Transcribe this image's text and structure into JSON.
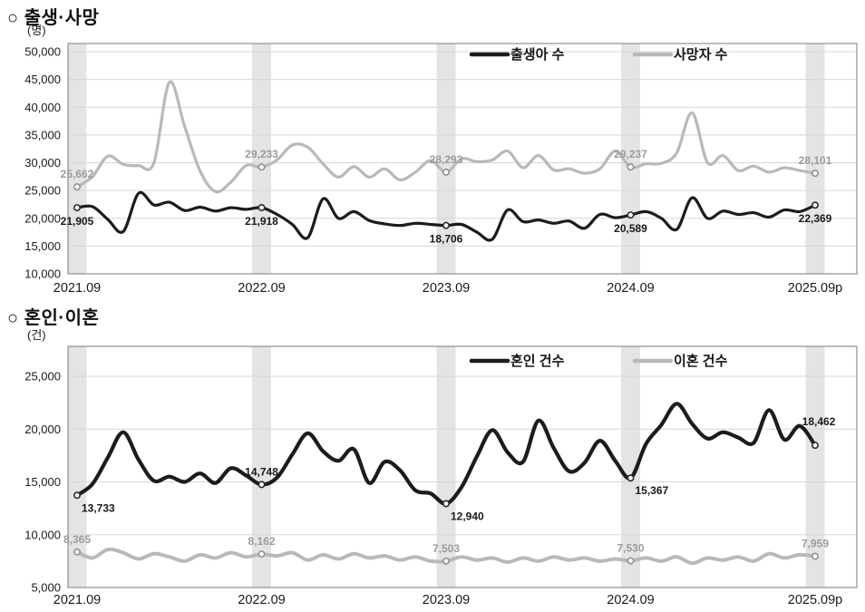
{
  "sections": [
    {
      "title": "○ 출생·사망"
    },
    {
      "title": "○ 혼인·이혼"
    }
  ],
  "chart_data": [
    {
      "type": "line",
      "title": "출생·사망",
      "unit_label": "(명)",
      "x_frequency": "monthly",
      "x_tick_labels": [
        "2021.09",
        "2022.09",
        "2023.09",
        "2024.09",
        "2025.09p"
      ],
      "x_tick_indices": [
        0,
        12,
        24,
        36,
        48
      ],
      "band_indices": [
        0,
        12,
        24,
        36,
        48
      ],
      "ylim": [
        10000,
        50000
      ],
      "ytick_step": 5000,
      "grid": true,
      "legend_position": "top-inside",
      "colors": {
        "band": "#e4e4e4",
        "grid": "#d7d7d7",
        "border": "#8f8f8f"
      },
      "series": [
        {
          "key": "births",
          "name": "출생아 수",
          "color": "#1c1c1c",
          "marker_stroke": "#2a2a2a",
          "label_color": "#1a1a1a",
          "width": 3.2,
          "values": [
            21905,
            22100,
            19800,
            17600,
            24500,
            22400,
            22900,
            21400,
            22000,
            21300,
            21900,
            21600,
            21918,
            20700,
            18900,
            16500,
            23500,
            20000,
            21200,
            19600,
            19000,
            18700,
            19100,
            18900,
            18706,
            18900,
            17500,
            16200,
            21500,
            19400,
            19700,
            19100,
            19500,
            18200,
            20700,
            20100,
            20589,
            21200,
            20000,
            18000,
            23700,
            20000,
            21300,
            20700,
            21000,
            20200,
            21500,
            21200,
            22369
          ]
        },
        {
          "key": "deaths",
          "name": "사망자 수",
          "color": "#b9b9b9",
          "marker_stroke": "#909090",
          "label_color": "#9b9b9b",
          "width": 3.2,
          "values": [
            25662,
            27500,
            31200,
            29700,
            29500,
            30000,
            44500,
            36500,
            28500,
            24800,
            26500,
            29500,
            29233,
            30500,
            33200,
            32800,
            29800,
            27400,
            29300,
            27400,
            28900,
            26900,
            28300,
            30400,
            28293,
            30700,
            30200,
            30500,
            32100,
            29100,
            31300,
            28700,
            28900,
            28100,
            28900,
            32100,
            29237,
            29800,
            29900,
            31800,
            39000,
            30000,
            31300,
            28600,
            29400,
            28300,
            29100,
            28600,
            28101
          ]
        }
      ],
      "annotations": [
        {
          "series": 0,
          "index": 0,
          "label": "21,905",
          "pos": "below"
        },
        {
          "series": 0,
          "index": 12,
          "label": "21,918",
          "pos": "below"
        },
        {
          "series": 0,
          "index": 24,
          "label": "18,706",
          "pos": "below"
        },
        {
          "series": 0,
          "index": 36,
          "label": "20,589",
          "pos": "below"
        },
        {
          "series": 0,
          "index": 48,
          "label": "22,369",
          "pos": "below"
        },
        {
          "series": 1,
          "index": 0,
          "label": "25,662",
          "pos": "above"
        },
        {
          "series": 1,
          "index": 12,
          "label": "29,233",
          "pos": "above"
        },
        {
          "series": 1,
          "index": 24,
          "label": "28,293",
          "pos": "above"
        },
        {
          "series": 1,
          "index": 36,
          "label": "29,237",
          "pos": "above"
        },
        {
          "series": 1,
          "index": 48,
          "label": "28,101",
          "pos": "above"
        }
      ]
    },
    {
      "type": "line",
      "title": "혼인·이혼",
      "unit_label": "(건)",
      "x_frequency": "monthly",
      "x_tick_labels": [
        "2021.09",
        "2022.09",
        "2023.09",
        "2024.09",
        "2025.09p"
      ],
      "x_tick_indices": [
        0,
        12,
        24,
        36,
        48
      ],
      "band_indices": [
        0,
        12,
        24,
        36,
        48
      ],
      "ylim": [
        5000,
        25000
      ],
      "ytick_step": 5000,
      "grid": true,
      "legend_position": "top-inside",
      "colors": {
        "band": "#e4e4e4",
        "grid": "#d7d7d7",
        "border": "#8f8f8f"
      },
      "series": [
        {
          "key": "marriages",
          "name": "혼인 건수",
          "color": "#1c1c1c",
          "marker_stroke": "#2a2a2a",
          "label_color": "#1a1a1a",
          "width": 4.2,
          "values": [
            13733,
            14800,
            17300,
            19700,
            17100,
            15100,
            15500,
            15000,
            15800,
            14900,
            16300,
            15600,
            14748,
            15400,
            17600,
            19600,
            17900,
            17000,
            18100,
            14900,
            16900,
            16100,
            14200,
            13900,
            12940,
            14500,
            17400,
            19900,
            17800,
            16900,
            20800,
            18200,
            16000,
            16800,
            18900,
            17000,
            15367,
            18600,
            20400,
            22400,
            20500,
            19100,
            19700,
            19200,
            18700,
            21800,
            19000,
            20300,
            18462
          ]
        },
        {
          "key": "divorces",
          "name": "이혼 건수",
          "color": "#b9b9b9",
          "marker_stroke": "#909090",
          "label_color": "#9b9b9b",
          "width": 4.0,
          "values": [
            8365,
            7800,
            8600,
            8300,
            7700,
            8200,
            7900,
            7500,
            8100,
            7800,
            8300,
            7900,
            8162,
            8000,
            8300,
            7600,
            8100,
            7700,
            8200,
            7800,
            8000,
            7600,
            7900,
            7500,
            7503,
            7900,
            7600,
            7800,
            7400,
            7800,
            7500,
            7900,
            7600,
            7800,
            7500,
            7700,
            7530,
            7800,
            7500,
            7900,
            7300,
            7800,
            7600,
            7900,
            7500,
            8200,
            7800,
            8100,
            7959
          ]
        }
      ],
      "annotations": [
        {
          "series": 0,
          "index": 0,
          "label": "13,733",
          "pos": "below-right"
        },
        {
          "series": 0,
          "index": 12,
          "label": "14,748",
          "pos": "above"
        },
        {
          "series": 0,
          "index": 24,
          "label": "12,940",
          "pos": "below-right"
        },
        {
          "series": 0,
          "index": 36,
          "label": "15,367",
          "pos": "below-right"
        },
        {
          "series": 0,
          "index": 48,
          "label": "18,462",
          "pos": "above-high"
        },
        {
          "series": 1,
          "index": 0,
          "label": "8,365",
          "pos": "above"
        },
        {
          "series": 1,
          "index": 12,
          "label": "8,162",
          "pos": "above"
        },
        {
          "series": 1,
          "index": 24,
          "label": "7,503",
          "pos": "above"
        },
        {
          "series": 1,
          "index": 36,
          "label": "7,530",
          "pos": "above"
        },
        {
          "series": 1,
          "index": 48,
          "label": "7,959",
          "pos": "above"
        }
      ]
    }
  ]
}
